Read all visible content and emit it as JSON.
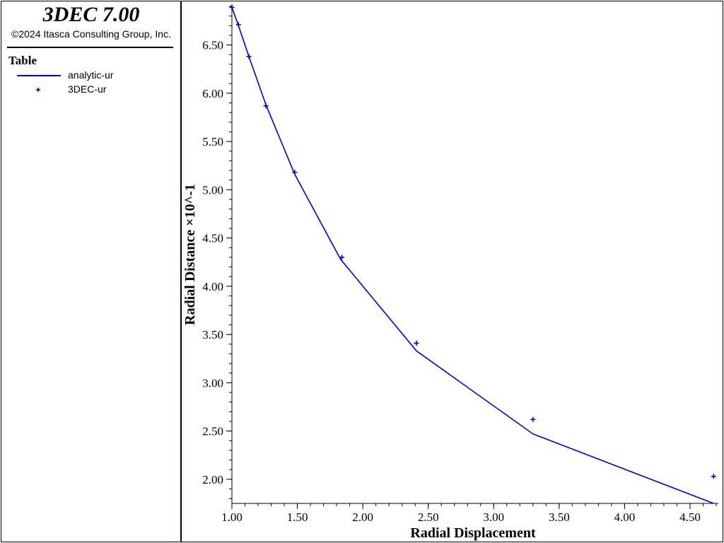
{
  "app": {
    "title": "3DEC 7.00",
    "copyright": "©2024 Itasca Consulting Group, Inc."
  },
  "legend": {
    "title": "Table",
    "items": [
      {
        "label": "analytic-ur",
        "style": "line",
        "color": "#0000cc"
      },
      {
        "label": "3DEC-ur",
        "style": "plus",
        "color": "#0000cc"
      }
    ]
  },
  "chart_data": {
    "type": "line",
    "xlabel": "Radial Displacement",
    "ylabel": "Radial Distance ×10^-1",
    "xlim": [
      1.0,
      4.7
    ],
    "ylim": [
      1.75,
      6.9
    ],
    "xticks": [
      "1.00",
      "1.50",
      "2.00",
      "2.50",
      "3.00",
      "3.50",
      "4.00",
      "4.50"
    ],
    "yticks": [
      "2.00",
      "2.50",
      "3.00",
      "3.50",
      "4.00",
      "4.50",
      "5.00",
      "5.50",
      "6.00",
      "6.50"
    ],
    "grid": false,
    "series": [
      {
        "name": "analytic-ur",
        "style": "line",
        "color": "#0000cc",
        "x": [
          1.0,
          1.05,
          1.13,
          1.26,
          1.48,
          1.83,
          2.41,
          3.3,
          4.68
        ],
        "y": [
          6.89,
          6.7,
          6.38,
          5.88,
          5.16,
          4.28,
          3.33,
          2.47,
          1.75
        ]
      },
      {
        "name": "3DEC-ur",
        "style": "plus",
        "color": "#0000cc",
        "x": [
          1.0,
          1.05,
          1.13,
          1.26,
          1.48,
          1.84,
          2.41,
          3.3,
          4.68
        ],
        "y": [
          6.89,
          6.71,
          6.38,
          5.87,
          5.18,
          4.3,
          3.41,
          2.62,
          2.03
        ]
      }
    ]
  }
}
